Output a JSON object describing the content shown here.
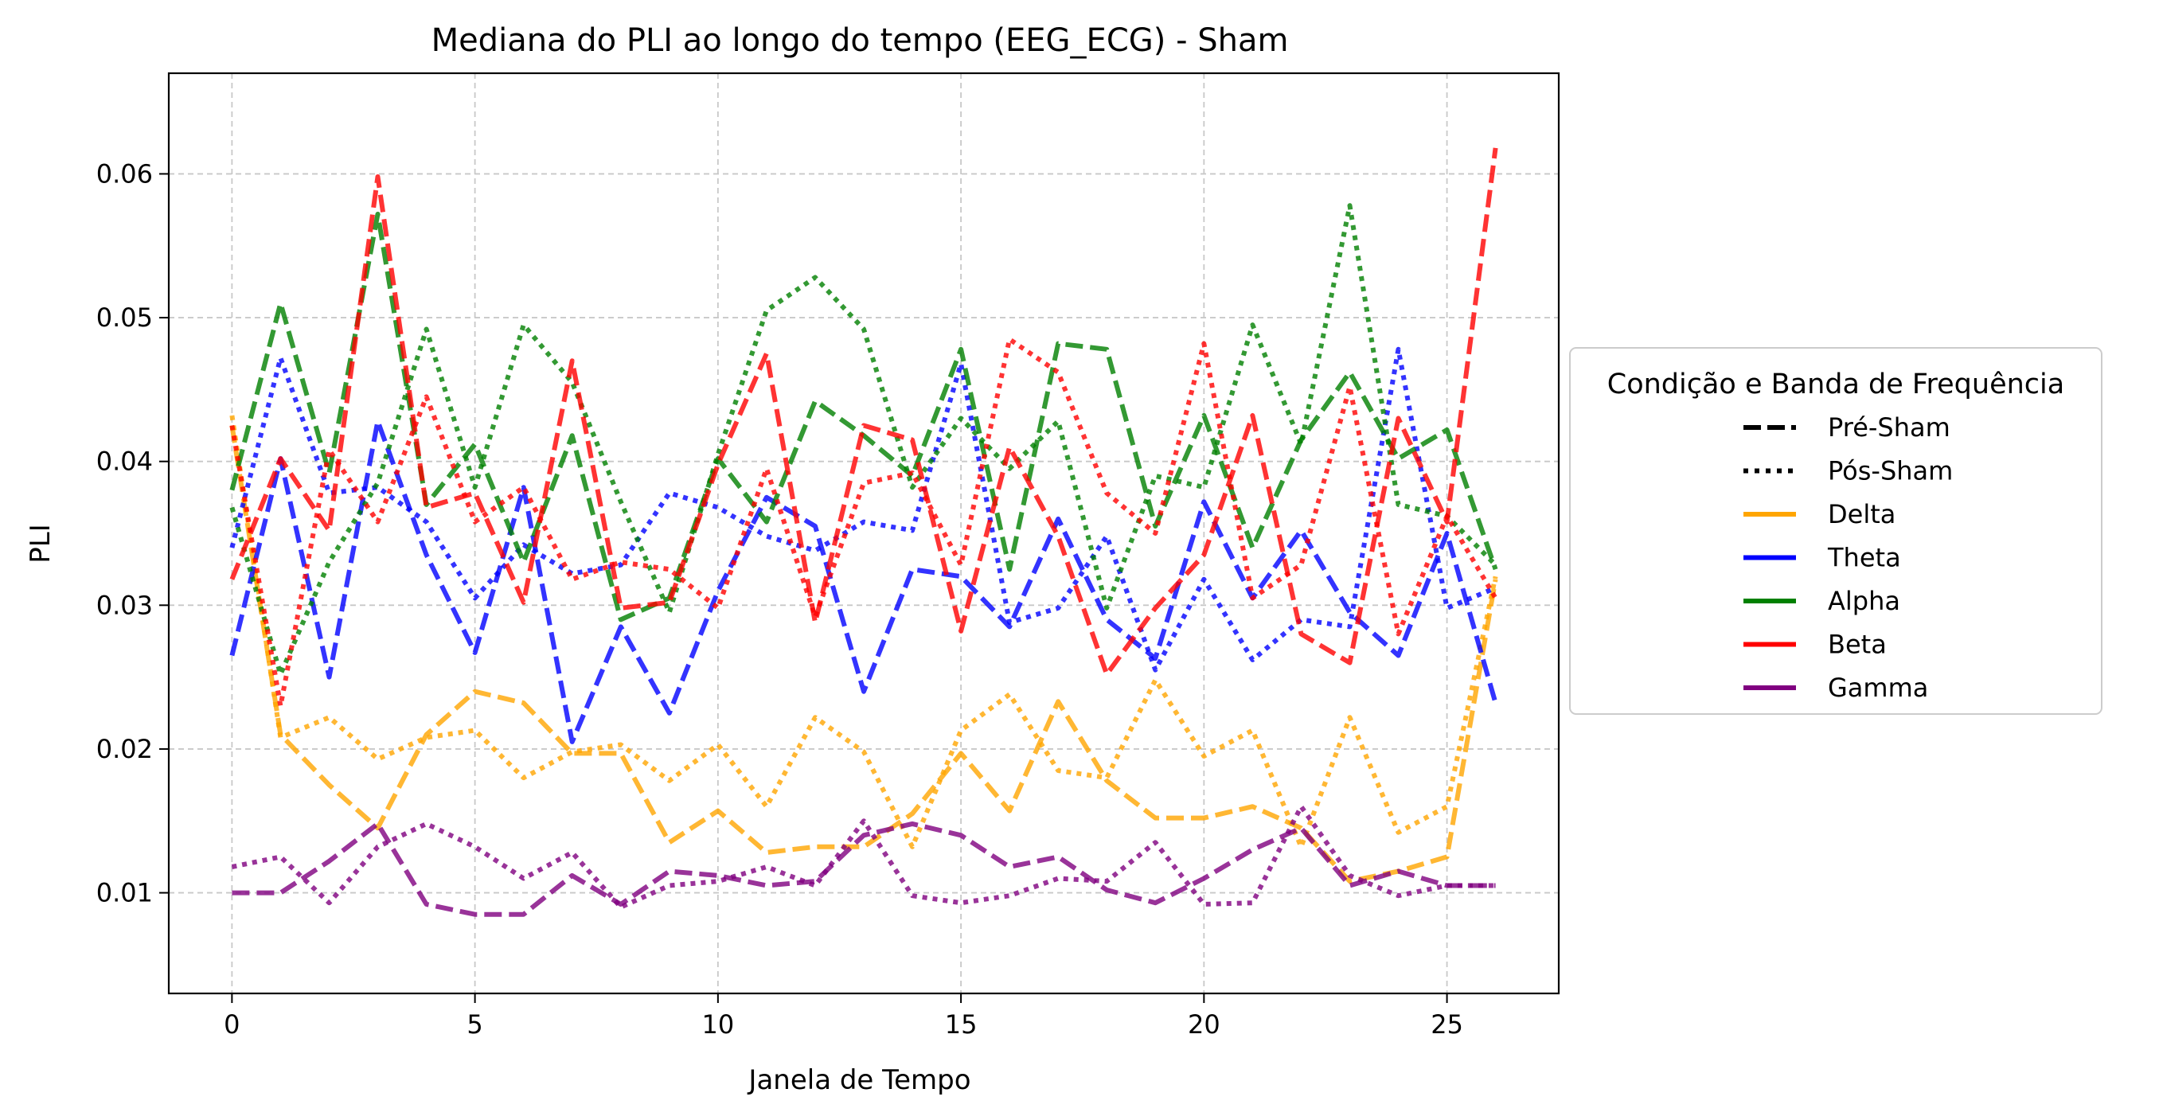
{
  "chart_data": {
    "type": "line",
    "title": "Mediana do PLI ao longo do tempo (EEG_ECG) - Sham",
    "xlabel": "Janela de Tempo",
    "ylabel": "PLI",
    "xlim": [
      -1.3,
      27.3
    ],
    "ylim": [
      0.003,
      0.067
    ],
    "xticks": [
      0,
      5,
      10,
      15,
      20,
      25
    ],
    "xtick_labels": [
      "0",
      "5",
      "10",
      "15",
      "20",
      "25"
    ],
    "yticks": [
      0.01,
      0.02,
      0.03,
      0.04,
      0.05,
      0.06
    ],
    "ytick_labels": [
      "0.01",
      "0.02",
      "0.03",
      "0.04",
      "0.05",
      "0.06"
    ],
    "grid": true,
    "legend": {
      "title": "Condição e Banda de Frequência",
      "placement": "center-right outside",
      "entries": [
        {
          "label": "Pré-Sham",
          "style": "dashed",
          "color": "#000000"
        },
        {
          "label": "Pós-Sham",
          "style": "dotted",
          "color": "#000000"
        },
        {
          "label": "Delta",
          "style": "solid",
          "color": "#FFA500"
        },
        {
          "label": "Theta",
          "style": "solid",
          "color": "#0000FF"
        },
        {
          "label": "Alpha",
          "style": "solid",
          "color": "#008000"
        },
        {
          "label": "Beta",
          "style": "solid",
          "color": "#FF0000"
        },
        {
          "label": "Gamma",
          "style": "solid",
          "color": "#800080"
        }
      ]
    },
    "x": [
      0,
      1,
      2,
      3,
      4,
      5,
      6,
      7,
      8,
      9,
      10,
      11,
      12,
      13,
      14,
      15,
      16,
      17,
      18,
      19,
      20,
      21,
      22,
      23,
      24,
      25,
      26
    ],
    "series": [
      {
        "band": "Delta",
        "condition": "Pré-Sham",
        "color": "#FFA500",
        "style": "dashed",
        "values": [
          0.0425,
          0.021,
          0.0175,
          0.0145,
          0.021,
          0.024,
          0.0232,
          0.0197,
          0.0197,
          0.0135,
          0.0157,
          0.0128,
          0.0132,
          0.0132,
          0.0155,
          0.0197,
          0.0157,
          0.0233,
          0.0178,
          0.0152,
          0.0152,
          0.016,
          0.0145,
          0.0108,
          0.0115,
          0.0125,
          0.0318
        ]
      },
      {
        "band": "Delta",
        "condition": "Pós-Sham",
        "color": "#FFA500",
        "style": "dotted",
        "values": [
          0.0432,
          0.0208,
          0.0222,
          0.0193,
          0.0208,
          0.0213,
          0.018,
          0.0198,
          0.0203,
          0.0178,
          0.0203,
          0.016,
          0.0222,
          0.0198,
          0.0132,
          0.0213,
          0.0238,
          0.0185,
          0.018,
          0.0248,
          0.0195,
          0.0213,
          0.0132,
          0.0222,
          0.0142,
          0.016,
          0.032
        ]
      },
      {
        "band": "Theta",
        "condition": "Pré-Sham",
        "color": "#0000FF",
        "style": "dashed",
        "values": [
          0.0265,
          0.0402,
          0.025,
          0.0428,
          0.0335,
          0.0267,
          0.0382,
          0.0205,
          0.0285,
          0.0225,
          0.031,
          0.0375,
          0.0355,
          0.024,
          0.0325,
          0.032,
          0.0285,
          0.036,
          0.029,
          0.0263,
          0.0372,
          0.0305,
          0.0352,
          0.0295,
          0.0265,
          0.035,
          0.0232
        ]
      },
      {
        "band": "Theta",
        "condition": "Pós-Sham",
        "color": "#0000FF",
        "style": "dotted",
        "values": [
          0.034,
          0.0472,
          0.0378,
          0.0382,
          0.0358,
          0.0305,
          0.0342,
          0.0322,
          0.0328,
          0.0378,
          0.0368,
          0.0348,
          0.0338,
          0.0358,
          0.0352,
          0.0468,
          0.0288,
          0.0298,
          0.0348,
          0.0255,
          0.0318,
          0.0262,
          0.029,
          0.0285,
          0.0478,
          0.0298,
          0.0312
        ]
      },
      {
        "band": "Alpha",
        "condition": "Pré-Sham",
        "color": "#008000",
        "style": "dashed",
        "values": [
          0.038,
          0.051,
          0.0392,
          0.0572,
          0.037,
          0.0412,
          0.033,
          0.0418,
          0.029,
          0.0305,
          0.0402,
          0.0358,
          0.0442,
          0.0418,
          0.039,
          0.0478,
          0.0325,
          0.0482,
          0.0478,
          0.0355,
          0.0432,
          0.034,
          0.0415,
          0.0462,
          0.0402,
          0.0422,
          0.0325
        ]
      },
      {
        "band": "Alpha",
        "condition": "Pós-Sham",
        "color": "#008000",
        "style": "dotted",
        "values": [
          0.0368,
          0.0252,
          0.033,
          0.0385,
          0.0492,
          0.0382,
          0.0495,
          0.0455,
          0.0372,
          0.0295,
          0.0405,
          0.0505,
          0.0528,
          0.0492,
          0.0382,
          0.043,
          0.0395,
          0.0428,
          0.0298,
          0.039,
          0.0382,
          0.0495,
          0.0412,
          0.0578,
          0.037,
          0.0362,
          0.0328
        ]
      },
      {
        "band": "Beta",
        "condition": "Pré-Sham",
        "color": "#FF0000",
        "style": "dashed",
        "values": [
          0.0318,
          0.0402,
          0.0352,
          0.0598,
          0.0368,
          0.0378,
          0.0302,
          0.047,
          0.0298,
          0.0302,
          0.0398,
          0.0475,
          0.0288,
          0.0425,
          0.0415,
          0.0282,
          0.041,
          0.0348,
          0.0252,
          0.0298,
          0.0335,
          0.0432,
          0.028,
          0.026,
          0.043,
          0.0358,
          0.0618
        ]
      },
      {
        "band": "Beta",
        "condition": "Pós-Sham",
        "color": "#FF0000",
        "style": "dotted",
        "values": [
          0.0425,
          0.023,
          0.0408,
          0.0358,
          0.0445,
          0.0358,
          0.0382,
          0.0318,
          0.033,
          0.0325,
          0.0298,
          0.0395,
          0.0292,
          0.0385,
          0.0392,
          0.0328,
          0.0485,
          0.0462,
          0.0378,
          0.035,
          0.0482,
          0.0305,
          0.0328,
          0.0452,
          0.028,
          0.0362,
          0.0305
        ]
      },
      {
        "band": "Gamma",
        "condition": "Pré-Sham",
        "color": "#800080",
        "style": "dashed",
        "values": [
          0.01,
          0.01,
          0.0122,
          0.0148,
          0.0092,
          0.0085,
          0.0085,
          0.0112,
          0.0092,
          0.0115,
          0.0112,
          0.0105,
          0.0108,
          0.014,
          0.0148,
          0.014,
          0.0118,
          0.0125,
          0.0102,
          0.0093,
          0.011,
          0.013,
          0.0145,
          0.0105,
          0.0115,
          0.0105,
          0.0105
        ]
      },
      {
        "band": "Gamma",
        "condition": "Pós-Sham",
        "color": "#800080",
        "style": "dotted",
        "values": [
          0.0118,
          0.0125,
          0.0093,
          0.0132,
          0.0148,
          0.0132,
          0.011,
          0.0128,
          0.009,
          0.0105,
          0.0108,
          0.0118,
          0.0105,
          0.015,
          0.0098,
          0.0093,
          0.0098,
          0.011,
          0.0108,
          0.0135,
          0.0092,
          0.0093,
          0.016,
          0.0112,
          0.0098,
          0.0105,
          0.0105
        ]
      }
    ]
  }
}
